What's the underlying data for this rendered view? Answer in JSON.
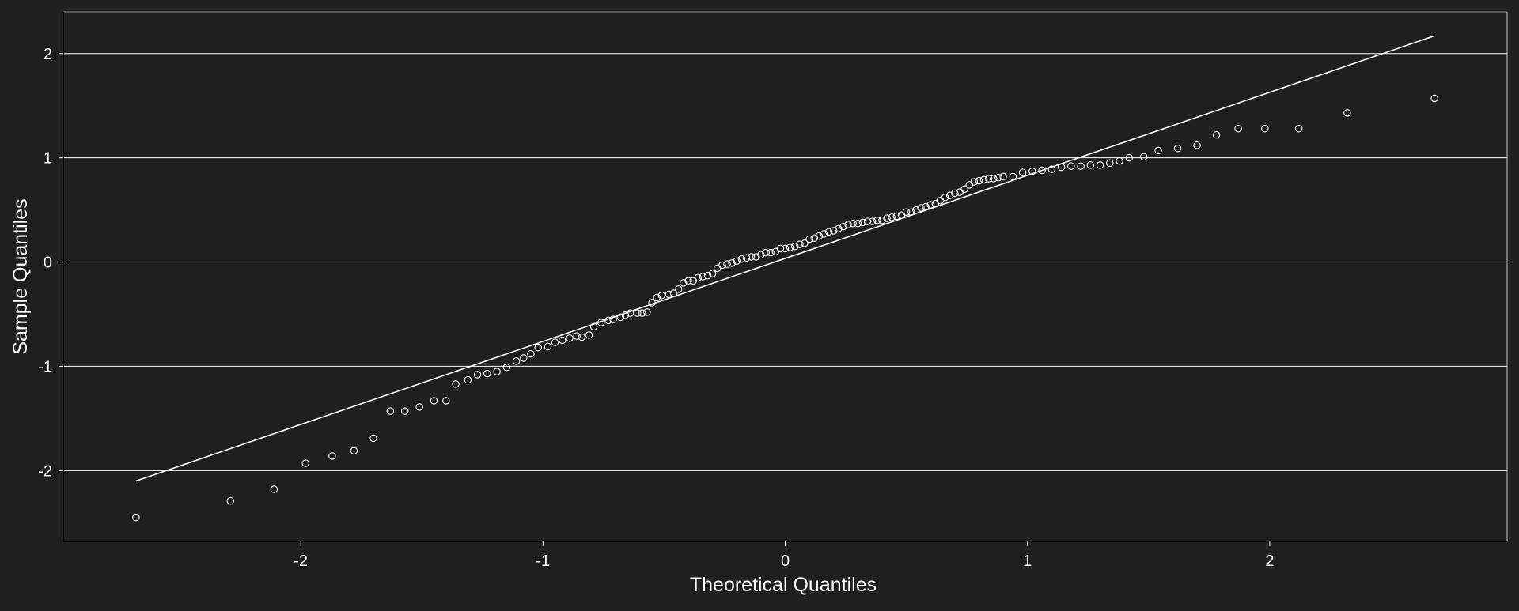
{
  "colors": {
    "background": "#1f1f1f",
    "foreground": "#ffffff",
    "gridline": "#ffffff"
  },
  "chart_data": {
    "type": "scatter",
    "title": "",
    "xlabel": "Theoretical Quantiles",
    "ylabel": "Sample Quantiles",
    "xlim": [
      -2.98,
      2.98
    ],
    "ylim": [
      -2.68,
      2.4
    ],
    "grid": {
      "x": false,
      "y": true
    },
    "x_ticks": [
      {
        "value": -2,
        "label": "-2"
      },
      {
        "value": -1,
        "label": "-1"
      },
      {
        "value": 0,
        "label": "0"
      },
      {
        "value": 1,
        "label": "1"
      },
      {
        "value": 2,
        "label": "2"
      }
    ],
    "y_ticks": [
      {
        "value": -2,
        "label": "-2"
      },
      {
        "value": -1,
        "label": "-1"
      },
      {
        "value": 0,
        "label": "0"
      },
      {
        "value": 1,
        "label": "1"
      },
      {
        "value": 2,
        "label": "2"
      }
    ],
    "marker": "hollow-circle",
    "reference_line": {
      "from": [
        -2.68,
        -2.1
      ],
      "to": [
        2.68,
        2.17
      ]
    },
    "points": [
      [
        -2.68,
        -2.45
      ],
      [
        -2.29,
        -2.29
      ],
      [
        -2.11,
        -2.18
      ],
      [
        -1.98,
        -1.93
      ],
      [
        -1.87,
        -1.86
      ],
      [
        -1.78,
        -1.81
      ],
      [
        -1.7,
        -1.69
      ],
      [
        -1.63,
        -1.43
      ],
      [
        -1.57,
        -1.43
      ],
      [
        -1.51,
        -1.39
      ],
      [
        -1.45,
        -1.33
      ],
      [
        -1.4,
        -1.33
      ],
      [
        -1.36,
        -1.17
      ],
      [
        -1.31,
        -1.13
      ],
      [
        -1.27,
        -1.08
      ],
      [
        -1.23,
        -1.07
      ],
      [
        -1.19,
        -1.05
      ],
      [
        -1.15,
        -1.01
      ],
      [
        -1.11,
        -0.95
      ],
      [
        -1.08,
        -0.92
      ],
      [
        -1.05,
        -0.88
      ],
      [
        -1.02,
        -0.82
      ],
      [
        -0.98,
        -0.81
      ],
      [
        -0.95,
        -0.77
      ],
      [
        -0.92,
        -0.75
      ],
      [
        -0.89,
        -0.73
      ],
      [
        -0.86,
        -0.71
      ],
      [
        -0.84,
        -0.72
      ],
      [
        -0.81,
        -0.7
      ],
      [
        -0.79,
        -0.62
      ],
      [
        -0.76,
        -0.58
      ],
      [
        -0.73,
        -0.56
      ],
      [
        -0.71,
        -0.55
      ],
      [
        -0.68,
        -0.53
      ],
      [
        -0.66,
        -0.51
      ],
      [
        -0.64,
        -0.49
      ],
      [
        -0.61,
        -0.49
      ],
      [
        -0.59,
        -0.49
      ],
      [
        -0.57,
        -0.48
      ],
      [
        -0.55,
        -0.39
      ],
      [
        -0.53,
        -0.34
      ],
      [
        -0.51,
        -0.32
      ],
      [
        -0.48,
        -0.31
      ],
      [
        -0.46,
        -0.3
      ],
      [
        -0.44,
        -0.26
      ],
      [
        -0.42,
        -0.2
      ],
      [
        -0.4,
        -0.18
      ],
      [
        -0.38,
        -0.18
      ],
      [
        -0.36,
        -0.15
      ],
      [
        -0.34,
        -0.14
      ],
      [
        -0.32,
        -0.13
      ],
      [
        -0.3,
        -0.11
      ],
      [
        -0.28,
        -0.06
      ],
      [
        -0.26,
        -0.03
      ],
      [
        -0.24,
        -0.02
      ],
      [
        -0.22,
        -0.01
      ],
      [
        -0.2,
        0.01
      ],
      [
        -0.18,
        0.03
      ],
      [
        -0.16,
        0.04
      ],
      [
        -0.14,
        0.05
      ],
      [
        -0.12,
        0.05
      ],
      [
        -0.1,
        0.07
      ],
      [
        -0.08,
        0.09
      ],
      [
        -0.06,
        0.09
      ],
      [
        -0.04,
        0.1
      ],
      [
        -0.02,
        0.13
      ],
      [
        0.0,
        0.13
      ],
      [
        0.02,
        0.14
      ],
      [
        0.04,
        0.15
      ],
      [
        0.06,
        0.17
      ],
      [
        0.08,
        0.18
      ],
      [
        0.1,
        0.22
      ],
      [
        0.12,
        0.23
      ],
      [
        0.14,
        0.25
      ],
      [
        0.16,
        0.27
      ],
      [
        0.18,
        0.29
      ],
      [
        0.2,
        0.3
      ],
      [
        0.22,
        0.32
      ],
      [
        0.24,
        0.34
      ],
      [
        0.26,
        0.36
      ],
      [
        0.28,
        0.37
      ],
      [
        0.3,
        0.37
      ],
      [
        0.32,
        0.38
      ],
      [
        0.34,
        0.39
      ],
      [
        0.36,
        0.39
      ],
      [
        0.38,
        0.4
      ],
      [
        0.4,
        0.4
      ],
      [
        0.42,
        0.42
      ],
      [
        0.44,
        0.43
      ],
      [
        0.46,
        0.44
      ],
      [
        0.48,
        0.45
      ],
      [
        0.5,
        0.48
      ],
      [
        0.52,
        0.48
      ],
      [
        0.54,
        0.5
      ],
      [
        0.56,
        0.52
      ],
      [
        0.58,
        0.53
      ],
      [
        0.6,
        0.55
      ],
      [
        0.62,
        0.56
      ],
      [
        0.64,
        0.59
      ],
      [
        0.66,
        0.62
      ],
      [
        0.68,
        0.64
      ],
      [
        0.7,
        0.66
      ],
      [
        0.72,
        0.67
      ],
      [
        0.74,
        0.7
      ],
      [
        0.76,
        0.74
      ],
      [
        0.78,
        0.77
      ],
      [
        0.8,
        0.78
      ],
      [
        0.82,
        0.79
      ],
      [
        0.84,
        0.8
      ],
      [
        0.86,
        0.8
      ],
      [
        0.88,
        0.81
      ],
      [
        0.9,
        0.82
      ],
      [
        0.94,
        0.82
      ],
      [
        0.98,
        0.86
      ],
      [
        1.02,
        0.87
      ],
      [
        1.06,
        0.88
      ],
      [
        1.1,
        0.89
      ],
      [
        1.14,
        0.91
      ],
      [
        1.18,
        0.92
      ],
      [
        1.22,
        0.92
      ],
      [
        1.26,
        0.93
      ],
      [
        1.3,
        0.93
      ],
      [
        1.34,
        0.95
      ],
      [
        1.38,
        0.97
      ],
      [
        1.42,
        1.0
      ],
      [
        1.48,
        1.01
      ],
      [
        1.54,
        1.07
      ],
      [
        1.62,
        1.09
      ],
      [
        1.7,
        1.12
      ],
      [
        1.78,
        1.22
      ],
      [
        1.87,
        1.28
      ],
      [
        1.98,
        1.28
      ],
      [
        2.12,
        1.28
      ],
      [
        2.32,
        1.43
      ],
      [
        2.68,
        1.57
      ]
    ]
  }
}
